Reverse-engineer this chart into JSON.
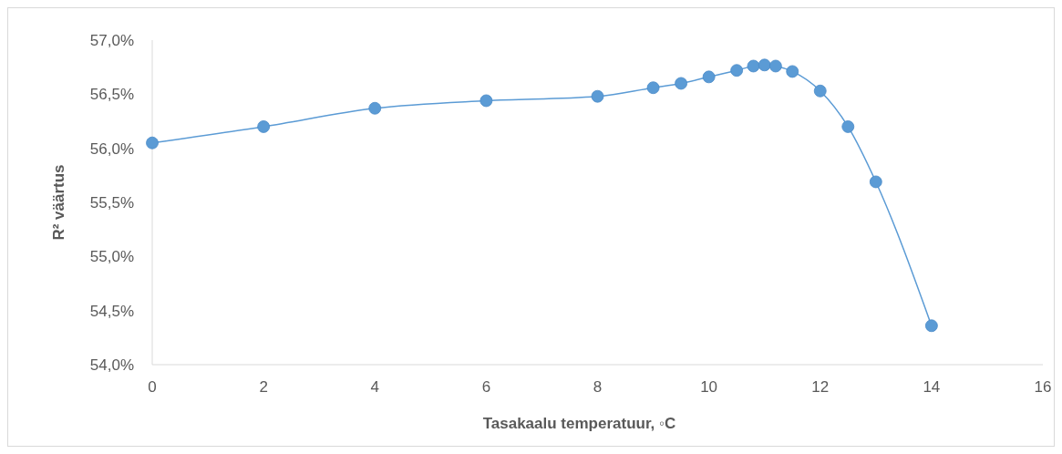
{
  "chart_data": {
    "type": "line",
    "xlabel": "Tasakaalu temperatuur, ◦C",
    "ylabel": "R² väärtus",
    "x": [
      0,
      2,
      4,
      6,
      8,
      9,
      9.5,
      10,
      10.5,
      10.8,
      11,
      11.2,
      11.5,
      12,
      12.5,
      13,
      14
    ],
    "series": [
      {
        "color": "#5b9bd5",
        "values": [
          56.05,
          56.2,
          56.37,
          56.44,
          56.48,
          56.56,
          56.6,
          56.66,
          56.72,
          56.76,
          56.77,
          56.76,
          56.71,
          56.53,
          56.2,
          55.69,
          54.36
        ]
      }
    ],
    "xlim": [
      0,
      16
    ],
    "xticks": [
      0,
      2,
      4,
      6,
      8,
      10,
      12,
      14,
      16
    ],
    "ylim": [
      54,
      57
    ],
    "yticks": [
      {
        "value": 54,
        "label": "54,0%"
      },
      {
        "value": 54.5,
        "label": "54,5%"
      },
      {
        "value": 55,
        "label": "55,0%"
      },
      {
        "value": 55.5,
        "label": "55,5%"
      },
      {
        "value": 56,
        "label": "56,0%"
      },
      {
        "value": 56.5,
        "label": "56,5%"
      },
      {
        "value": 57,
        "label": "57,0%"
      }
    ],
    "marker": "circle",
    "grid": false
  }
}
